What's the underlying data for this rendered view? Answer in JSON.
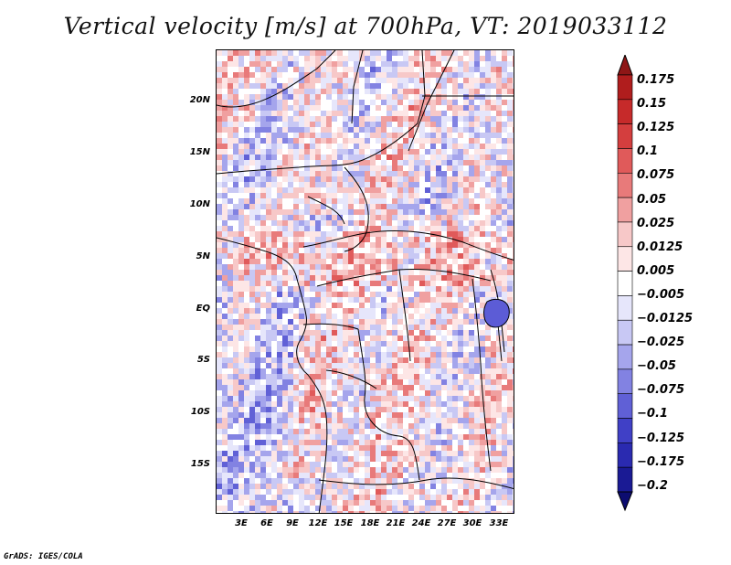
{
  "title": "Vertical velocity [m/s] at 700hPa, VT: 2019033112",
  "footer": "GrADS: IGES/COLA",
  "map": {
    "lat_labels": [
      "20N",
      "15N",
      "10N",
      "5N",
      "EQ",
      "5S",
      "10S",
      "15S"
    ],
    "lon_labels": [
      "3E",
      "6E",
      "9E",
      "12E",
      "15E",
      "18E",
      "21E",
      "24E",
      "27E",
      "30E",
      "33E"
    ]
  },
  "colorbar": {
    "labels": [
      "0.175",
      "0.15",
      "0.125",
      "0.1",
      "0.075",
      "0.05",
      "0.025",
      "0.0125",
      "0.005",
      "−0.005",
      "−0.0125",
      "−0.025",
      "−0.05",
      "−0.075",
      "−0.1",
      "−0.125",
      "−0.175",
      "−0.2"
    ],
    "colors": [
      "#8e1616",
      "#b01d1d",
      "#c62a2a",
      "#d43e3e",
      "#e05a5a",
      "#e87a7a",
      "#f0a0a0",
      "#f7c8c8",
      "#fde6e6",
      "#ffffff",
      "#e6e6fb",
      "#c8c8f4",
      "#a5a5ec",
      "#8282e2",
      "#6060d6",
      "#4040c6",
      "#2a2ab0",
      "#1a1a94",
      "#0c0c70"
    ]
  }
}
